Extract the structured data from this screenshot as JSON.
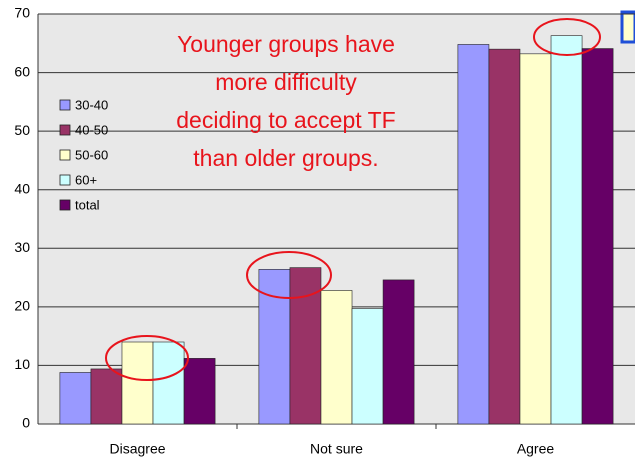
{
  "chart_data": {
    "type": "bar",
    "categories": [
      "Disagree",
      "Not sure",
      "Agree"
    ],
    "series": [
      {
        "name": "30-40",
        "color": "#9999ff",
        "values": [
          8.8,
          26.4,
          64.8
        ]
      },
      {
        "name": "40-50",
        "color": "#993366",
        "values": [
          9.4,
          26.7,
          64.0
        ]
      },
      {
        "name": "50-60",
        "color": "#ffffcc",
        "values": [
          14.0,
          22.8,
          63.2
        ]
      },
      {
        "name": "60+",
        "color": "#ccffff",
        "values": [
          14.0,
          19.7,
          66.3
        ]
      },
      {
        "name": "total",
        "color": "#660066",
        "values": [
          11.2,
          24.6,
          64.1
        ]
      }
    ],
    "ylim": [
      0,
      70
    ],
    "yticks": [
      0,
      10,
      20,
      30,
      40,
      50,
      60,
      70
    ],
    "grid": true,
    "legend": "left",
    "annotation": [
      "Younger groups have",
      "more difficulty",
      "deciding to accept TF",
      "than older groups."
    ]
  }
}
